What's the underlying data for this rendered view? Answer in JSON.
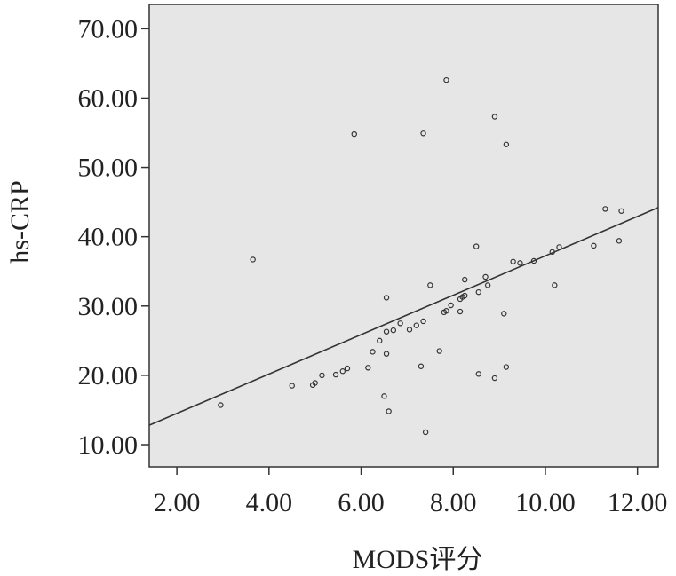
{
  "chart_data": {
    "type": "scatter",
    "xlabel": "MODS评分",
    "ylabel": "hs-CRP",
    "xlim": [
      1.4,
      12.45
    ],
    "ylim": [
      6.8,
      73.5
    ],
    "x_ticks": [
      2,
      4,
      6,
      8,
      10,
      12
    ],
    "x_tick_labels": [
      "2.00",
      "4.00",
      "6.00",
      "8.00",
      "10.00",
      "12.00"
    ],
    "y_ticks": [
      10,
      20,
      30,
      40,
      50,
      60,
      70
    ],
    "y_tick_labels": [
      "10.00",
      "20.00",
      "30.00",
      "40.00",
      "50.00",
      "60.00",
      "70.00"
    ],
    "grid": false,
    "background": "#e6e6e6",
    "point_color": "#333333",
    "fit_line": {
      "type": "linear",
      "start": [
        1.4,
        12.8
      ],
      "end": [
        12.45,
        44.2
      ]
    },
    "points": [
      [
        2.95,
        15.7
      ],
      [
        3.65,
        36.7
      ],
      [
        4.5,
        18.5
      ],
      [
        4.95,
        18.6
      ],
      [
        5.0,
        18.9
      ],
      [
        5.15,
        20.0
      ],
      [
        5.45,
        20.1
      ],
      [
        5.6,
        20.6
      ],
      [
        5.7,
        21.0
      ],
      [
        5.85,
        54.8
      ],
      [
        6.15,
        21.1
      ],
      [
        6.25,
        23.4
      ],
      [
        6.4,
        25.0
      ],
      [
        6.5,
        17.0
      ],
      [
        6.55,
        23.1
      ],
      [
        6.55,
        31.2
      ],
      [
        6.55,
        26.3
      ],
      [
        6.6,
        14.8
      ],
      [
        6.7,
        26.5
      ],
      [
        6.85,
        27.5
      ],
      [
        7.05,
        26.6
      ],
      [
        7.2,
        27.2
      ],
      [
        7.3,
        21.3
      ],
      [
        7.35,
        27.8
      ],
      [
        7.35,
        54.9
      ],
      [
        7.4,
        11.8
      ],
      [
        7.5,
        33.0
      ],
      [
        7.7,
        23.5
      ],
      [
        7.8,
        29.1
      ],
      [
        7.85,
        29.3
      ],
      [
        7.85,
        62.6
      ],
      [
        7.95,
        30.1
      ],
      [
        8.15,
        29.2
      ],
      [
        8.15,
        31.0
      ],
      [
        8.2,
        31.3
      ],
      [
        8.25,
        31.5
      ],
      [
        8.25,
        33.8
      ],
      [
        8.5,
        38.6
      ],
      [
        8.55,
        32.0
      ],
      [
        8.55,
        20.2
      ],
      [
        8.7,
        34.2
      ],
      [
        8.75,
        33.0
      ],
      [
        8.9,
        19.6
      ],
      [
        8.9,
        57.3
      ],
      [
        9.1,
        28.9
      ],
      [
        9.15,
        53.3
      ],
      [
        9.15,
        21.2
      ],
      [
        9.3,
        36.4
      ],
      [
        9.45,
        36.2
      ],
      [
        9.75,
        36.5
      ],
      [
        10.15,
        37.8
      ],
      [
        10.2,
        33.0
      ],
      [
        10.3,
        38.5
      ],
      [
        11.05,
        38.7
      ],
      [
        11.3,
        44.0
      ],
      [
        11.6,
        39.4
      ],
      [
        11.65,
        43.7
      ]
    ]
  }
}
